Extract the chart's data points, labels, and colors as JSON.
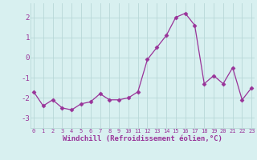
{
  "x": [
    0,
    1,
    2,
    3,
    4,
    5,
    6,
    7,
    8,
    9,
    10,
    11,
    12,
    13,
    14,
    15,
    16,
    17,
    18,
    19,
    20,
    21,
    22,
    23
  ],
  "y": [
    -1.7,
    -2.4,
    -2.1,
    -2.5,
    -2.6,
    -2.3,
    -2.2,
    -1.8,
    -2.1,
    -2.1,
    -2.0,
    -1.7,
    -0.1,
    0.5,
    1.1,
    2.0,
    2.2,
    1.6,
    -1.3,
    -0.9,
    -1.3,
    -0.5,
    -2.1,
    -1.5
  ],
  "line_color": "#993399",
  "marker": "D",
  "marker_size": 2.5,
  "bg_color": "#d8f0f0",
  "grid_color": "#b8d8d8",
  "tick_color": "#993399",
  "label_color": "#993399",
  "xlabel": "Windchill (Refroidissement éolien,°C)",
  "ylabel": "",
  "yticks": [
    -3,
    -2,
    -1,
    0,
    1,
    2
  ],
  "xticks": [
    0,
    1,
    2,
    3,
    4,
    5,
    6,
    7,
    8,
    9,
    10,
    11,
    12,
    13,
    14,
    15,
    16,
    17,
    18,
    19,
    20,
    21,
    22,
    23
  ],
  "ylim": [
    -3.5,
    2.7
  ],
  "xlim": [
    -0.3,
    23.3
  ],
  "title": "",
  "xtick_fontsize": 5.0,
  "ytick_fontsize": 6.5,
  "xlabel_fontsize": 6.5
}
